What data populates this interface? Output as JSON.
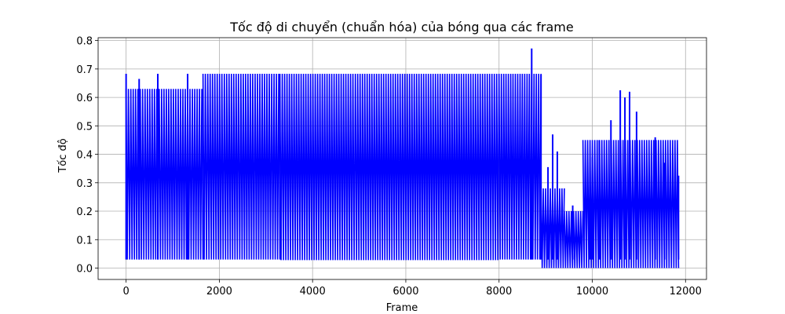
{
  "chart_data": {
    "type": "line",
    "title": "Tốc độ di chuyển (chuẩn hóa) của bóng qua các frame",
    "xlabel": "Frame",
    "ylabel": "Tốc độ",
    "xlim": [
      -600,
      12450
    ],
    "ylim": [
      -0.04,
      0.81
    ],
    "xticks": [
      0,
      2000,
      4000,
      6000,
      8000,
      10000,
      12000
    ],
    "xtick_labels": [
      "0",
      "2000",
      "4000",
      "6000",
      "8000",
      "10000",
      "12000"
    ],
    "yticks": [
      0.0,
      0.1,
      0.2,
      0.3,
      0.4,
      0.5,
      0.6,
      0.7,
      0.8
    ],
    "ytick_labels": [
      "0.0",
      "0.1",
      "0.2",
      "0.3",
      "0.4",
      "0.5",
      "0.6",
      "0.7",
      "0.8"
    ],
    "grid": true,
    "legend": "none",
    "series": [
      {
        "color": "#0000ff",
        "segments": [
          {
            "x_start": 0,
            "x_end": 1650,
            "high": 0.63,
            "low": 0.03
          },
          {
            "x_start": 1650,
            "x_end": 3300,
            "high": 0.683,
            "low": 0.03
          },
          {
            "x_start": 3300,
            "x_end": 8000,
            "high": 0.683,
            "low": 0.028
          },
          {
            "x_start": 8000,
            "x_end": 8900,
            "high": 0.683,
            "low": 0.03
          },
          {
            "x_start": 8900,
            "x_end": 9400,
            "high": 0.28,
            "low": 0.0
          },
          {
            "x_start": 9400,
            "x_end": 9800,
            "high": 0.2,
            "low": 0.0
          },
          {
            "x_start": 9800,
            "x_end": 11850,
            "high": 0.45,
            "low": 0.0
          }
        ],
        "peaks": [
          {
            "x": 0,
            "y": 0.683
          },
          {
            "x": 280,
            "y": 0.665
          },
          {
            "x": 680,
            "y": 0.683
          },
          {
            "x": 1320,
            "y": 0.683
          },
          {
            "x": 8700,
            "y": 0.772
          },
          {
            "x": 8900,
            "y": 0.68
          },
          {
            "x": 9050,
            "y": 0.355
          },
          {
            "x": 9150,
            "y": 0.47
          },
          {
            "x": 9250,
            "y": 0.41
          },
          {
            "x": 9580,
            "y": 0.22
          },
          {
            "x": 9950,
            "y": 0.34
          },
          {
            "x": 10000,
            "y": 0.39
          },
          {
            "x": 10150,
            "y": 0.45
          },
          {
            "x": 10400,
            "y": 0.52
          },
          {
            "x": 10600,
            "y": 0.625
          },
          {
            "x": 10700,
            "y": 0.6
          },
          {
            "x": 10800,
            "y": 0.62
          },
          {
            "x": 10950,
            "y": 0.55
          },
          {
            "x": 11350,
            "y": 0.46
          },
          {
            "x": 11550,
            "y": 0.37
          },
          {
            "x": 11850,
            "y": 0.325
          }
        ]
      }
    ]
  }
}
